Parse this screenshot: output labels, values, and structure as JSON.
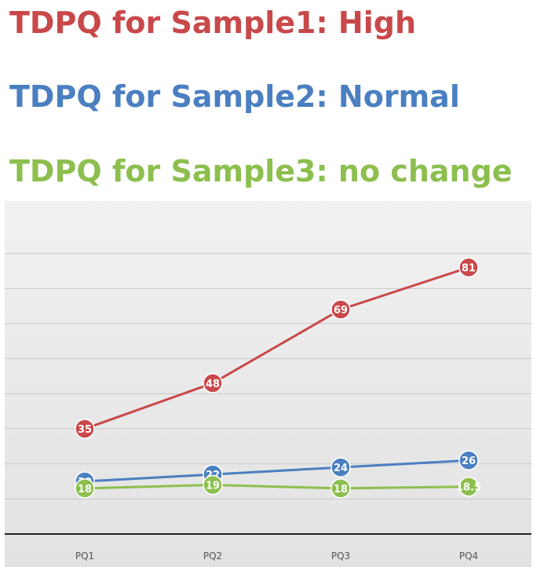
{
  "headings": [
    {
      "text": "TDPQ for Sample1: High",
      "color": "#c9484a"
    },
    {
      "text": "TDPQ for Sample2: Normal",
      "color": "#4a7fc1"
    },
    {
      "text": "TDPQ for Sample3: no change",
      "color": "#8cbf4e"
    }
  ],
  "chart_data": {
    "type": "line",
    "categories": [
      "PQ1",
      "PQ2",
      "PQ3",
      "PQ4"
    ],
    "series": [
      {
        "color": "#c9484a",
        "values": [
          35,
          48,
          69,
          81
        ],
        "labels": [
          "35",
          "48",
          "69",
          "81"
        ]
      },
      {
        "color": "#4a7fc1",
        "values": [
          20,
          22,
          24,
          26
        ],
        "labels": [
          "20",
          "22",
          "24",
          "26"
        ]
      },
      {
        "color": "#8cbf4e",
        "values": [
          18,
          19,
          18,
          18.5
        ],
        "labels": [
          "18",
          "19",
          "18",
          "18.5"
        ]
      }
    ],
    "ylim": [
      5,
      95
    ],
    "grid": true,
    "legend": "none",
    "data_labels": true
  }
}
